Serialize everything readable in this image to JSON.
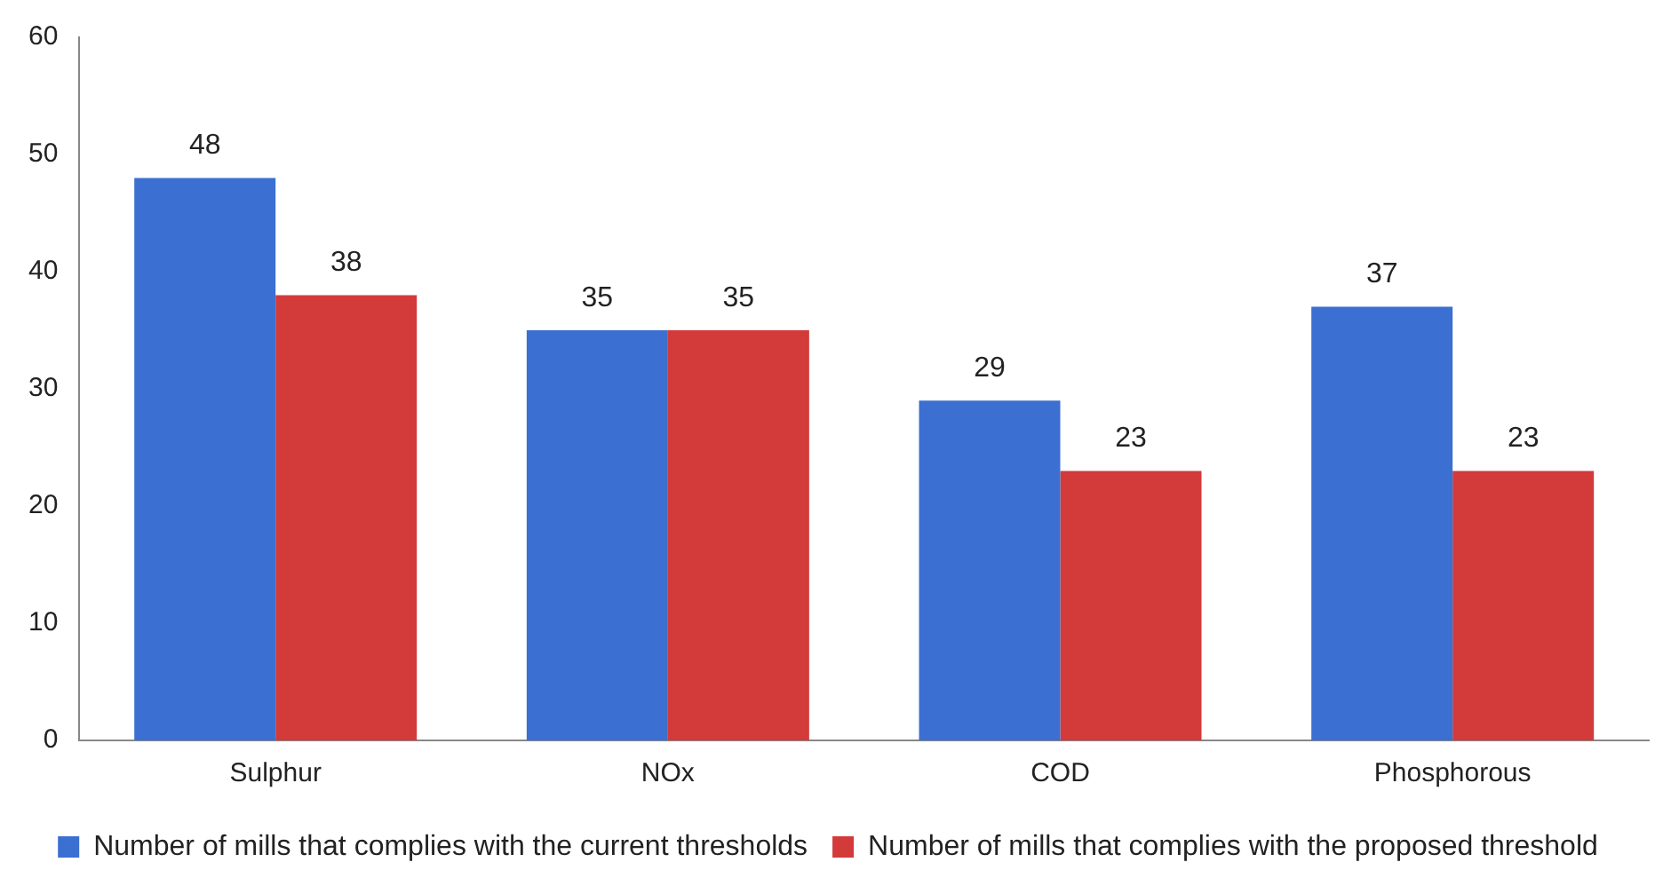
{
  "chart_data": {
    "type": "bar",
    "categories": [
      "Sulphur",
      "NOx",
      "COD",
      "Phosphorous"
    ],
    "series": [
      {
        "name": "Number of mills that complies with the current thresholds",
        "color": "#3b6fd1",
        "values": [
          48,
          35,
          29,
          37
        ]
      },
      {
        "name": "Number of mills that complies with the proposed threshold",
        "color": "#d33a3a",
        "values": [
          38,
          35,
          23,
          23
        ]
      }
    ],
    "ylim": [
      0,
      60
    ],
    "yticks": [
      0,
      10,
      20,
      30,
      40,
      50,
      60
    ],
    "grid": false,
    "legend": "bottom",
    "data_labels": true
  }
}
